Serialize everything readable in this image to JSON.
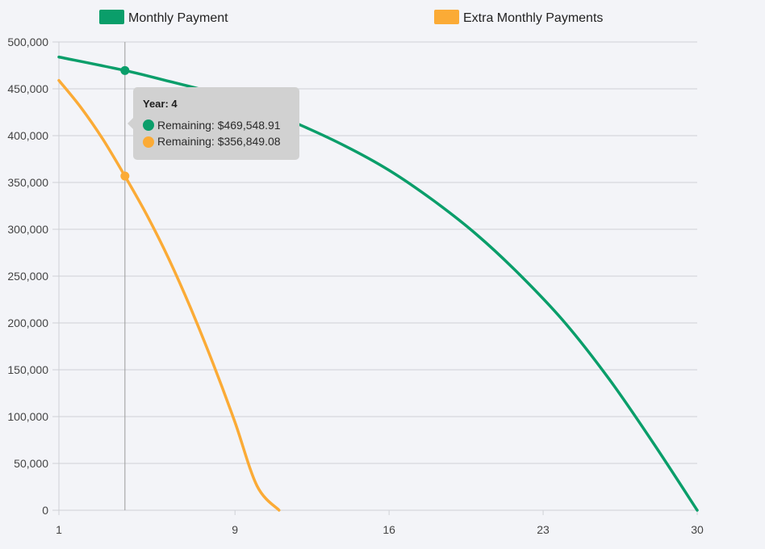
{
  "legend": [
    {
      "label": "Monthly Payment",
      "color": "#0a9e6a"
    },
    {
      "label": "Extra Monthly Payments",
      "color": "#fbab36"
    }
  ],
  "tooltip": {
    "title": "Year: 4",
    "lines": [
      "Remaining: $469,548.91",
      "Remaining: $356,849.08"
    ]
  },
  "chart_data": {
    "type": "line",
    "xlim": [
      1,
      30
    ],
    "ylim": [
      0,
      500000
    ],
    "x_ticks": [
      "1",
      "9",
      "16",
      "23",
      "30"
    ],
    "y_ticks": [
      "500,000",
      "450,000",
      "400,000",
      "350,000",
      "300,000",
      "250,000",
      "200,000",
      "150,000",
      "100,000",
      "50,000",
      "0"
    ],
    "grid": true,
    "legend_position": "top",
    "hover_x": 4,
    "series": [
      {
        "name": "Monthly Payment",
        "color": "#0a9e6a",
        "x": [
          1,
          4,
          6,
          8,
          10,
          12,
          14,
          16,
          18,
          20,
          22,
          24,
          26,
          28,
          30
        ],
        "y": [
          484000,
          469549,
          458000,
          446000,
          430000,
          411000,
          389000,
          363000,
          331000,
          294000,
          250000,
          200000,
          140000,
          72000,
          0
        ]
      },
      {
        "name": "Extra Monthly Payments",
        "color": "#fbab36",
        "x": [
          1,
          2,
          3,
          4,
          5,
          6,
          7,
          8,
          9,
          10,
          11
        ],
        "y": [
          459000,
          430000,
          396000,
          356849,
          315000,
          268000,
          215000,
          157000,
          94000,
          26000,
          0
        ]
      }
    ]
  }
}
